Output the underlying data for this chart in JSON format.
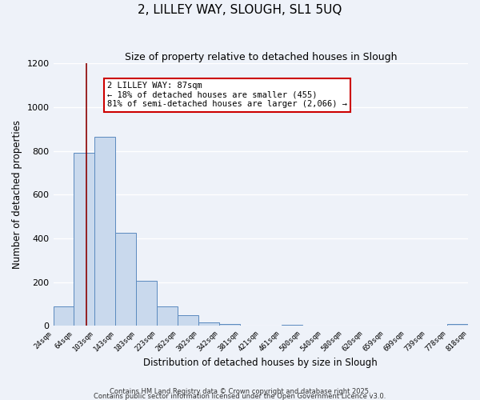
{
  "title": "2, LILLEY WAY, SLOUGH, SL1 5UQ",
  "subtitle": "Size of property relative to detached houses in Slough",
  "xlabel": "Distribution of detached houses by size in Slough",
  "ylabel": "Number of detached properties",
  "tick_labels": [
    "24sqm",
    "64sqm",
    "103sqm",
    "143sqm",
    "183sqm",
    "223sqm",
    "262sqm",
    "302sqm",
    "342sqm",
    "381sqm",
    "421sqm",
    "461sqm",
    "500sqm",
    "540sqm",
    "580sqm",
    "620sqm",
    "659sqm",
    "699sqm",
    "739sqm",
    "778sqm",
    "818sqm"
  ],
  "bar_heights": [
    90,
    790,
    865,
    425,
    205,
    90,
    50,
    15,
    10,
    0,
    0,
    5,
    0,
    0,
    0,
    0,
    0,
    0,
    0,
    10
  ],
  "bar_color": "#c9d9ed",
  "bar_edgecolor": "#5b8abf",
  "vline_bar_index": 1.6,
  "vline_color": "#8b0000",
  "annotation_title": "2 LILLEY WAY: 87sqm",
  "annotation_line1": "← 18% of detached houses are smaller (455)",
  "annotation_line2": "81% of semi-detached houses are larger (2,066) →",
  "annotation_box_edgecolor": "#cc0000",
  "ylim": [
    0,
    1200
  ],
  "yticks": [
    0,
    200,
    400,
    600,
    800,
    1000,
    1200
  ],
  "background_color": "#eef2f9",
  "grid_color": "#ffffff",
  "footer1": "Contains HM Land Registry data © Crown copyright and database right 2025.",
  "footer2": "Contains public sector information licensed under the Open Government Licence v3.0."
}
